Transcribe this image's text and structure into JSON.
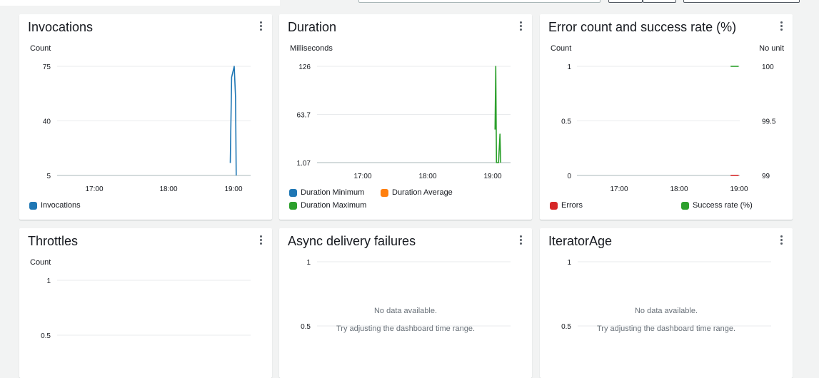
{
  "colors": {
    "blue": "#1f77b4",
    "orange": "#ff7f0e",
    "green": "#2ca02c",
    "red": "#d62728",
    "grid": "#e9ebed",
    "axis": "#aab7b8"
  },
  "widgets": [
    {
      "title": "Invocations",
      "unit_left": "Count",
      "unit_right": "",
      "legend": [
        {
          "label": "Invocations",
          "color": "#1f77b4"
        }
      ],
      "nodata": ""
    },
    {
      "title": "Duration",
      "unit_left": "Milliseconds",
      "unit_right": "",
      "legend": [
        {
          "label": "Duration Minimum",
          "color": "#1f77b4"
        },
        {
          "label": "Duration Average",
          "color": "#ff7f0e"
        },
        {
          "label": "Duration Maximum",
          "color": "#2ca02c"
        }
      ],
      "nodata": ""
    },
    {
      "title": "Error count and success rate (%)",
      "unit_left": "Count",
      "unit_right": "No unit",
      "legend": [
        {
          "label": "Errors",
          "color": "#d62728"
        },
        {
          "label": "Success rate (%)",
          "color": "#2ca02c"
        }
      ],
      "nodata": ""
    },
    {
      "title": "Throttles",
      "unit_left": "Count",
      "unit_right": "",
      "legend": [],
      "nodata": ""
    },
    {
      "title": "Async delivery failures",
      "unit_left": "",
      "unit_right": "",
      "legend": [],
      "nodata": "No data available.",
      "nodata_hint": "Try adjusting the dashboard time range."
    },
    {
      "title": "IteratorAge",
      "unit_left": "",
      "unit_right": "",
      "legend": [],
      "nodata": "No data available.",
      "nodata_hint": "Try adjusting the dashboard time range."
    }
  ],
  "chart_data": [
    {
      "type": "line",
      "title": "Invocations",
      "ylabel": "Count",
      "x_ticks": [
        "17:00",
        "18:00",
        "19:00"
      ],
      "y_ticks": [
        "75",
        "40",
        "5"
      ],
      "ylim": [
        5,
        75
      ],
      "series": [
        {
          "name": "Invocations",
          "color": "#1f77b4",
          "points": [
            [
              19.14,
              13
            ],
            [
              19.16,
              68
            ],
            [
              19.2,
              75
            ],
            [
              19.22,
              55
            ],
            [
              19.23,
              5
            ]
          ]
        }
      ]
    },
    {
      "type": "line",
      "title": "Duration",
      "ylabel": "Milliseconds",
      "x_ticks": [
        "17:00",
        "18:00",
        "19:00"
      ],
      "y_ticks": [
        "126",
        "63.7",
        "1.07"
      ],
      "ylim": [
        1.07,
        126
      ],
      "series": [
        {
          "name": "Duration Minimum",
          "color": "#1f77b4",
          "points": []
        },
        {
          "name": "Duration Average",
          "color": "#ff7f0e",
          "points": []
        },
        {
          "name": "Duration Maximum",
          "color": "#2ca02c",
          "points": [
            [
              19.08,
              44
            ],
            [
              19.09,
              126
            ],
            [
              19.1,
              1.07
            ],
            [
              19.13,
              1.07
            ],
            [
              19.15,
              38
            ],
            [
              19.16,
              1.07
            ]
          ]
        }
      ]
    },
    {
      "type": "line",
      "title": "Error count and success rate (%)",
      "ylabel": "Count",
      "ylabel_right": "No unit",
      "x_ticks": [
        "17:00",
        "18:00",
        "19:00"
      ],
      "y_ticks": [
        "1",
        "0.5",
        "0"
      ],
      "y_ticks_right": [
        "100",
        "99.5",
        "99"
      ],
      "ylim": [
        0,
        1
      ],
      "ylim_right": [
        99,
        100
      ],
      "series": [
        {
          "name": "Errors",
          "color": "#d62728",
          "points": [
            [
              19.1,
              0
            ],
            [
              19.25,
              0
            ]
          ]
        },
        {
          "name": "Success rate (%)",
          "color": "#2ca02c",
          "points": [
            [
              19.1,
              100
            ],
            [
              19.25,
              100
            ]
          ]
        }
      ]
    },
    {
      "type": "line",
      "title": "Throttles",
      "ylabel": "Count",
      "y_ticks": [
        "1",
        "0.5"
      ],
      "ylim": [
        0,
        1
      ],
      "series": []
    },
    {
      "type": "line",
      "title": "Async delivery failures",
      "y_ticks": [
        "1",
        "0.5"
      ],
      "ylim": [
        0,
        1
      ],
      "series": []
    },
    {
      "type": "line",
      "title": "IteratorAge",
      "y_ticks": [
        "1",
        "0.5"
      ],
      "ylim": [
        0,
        1
      ],
      "series": []
    }
  ]
}
